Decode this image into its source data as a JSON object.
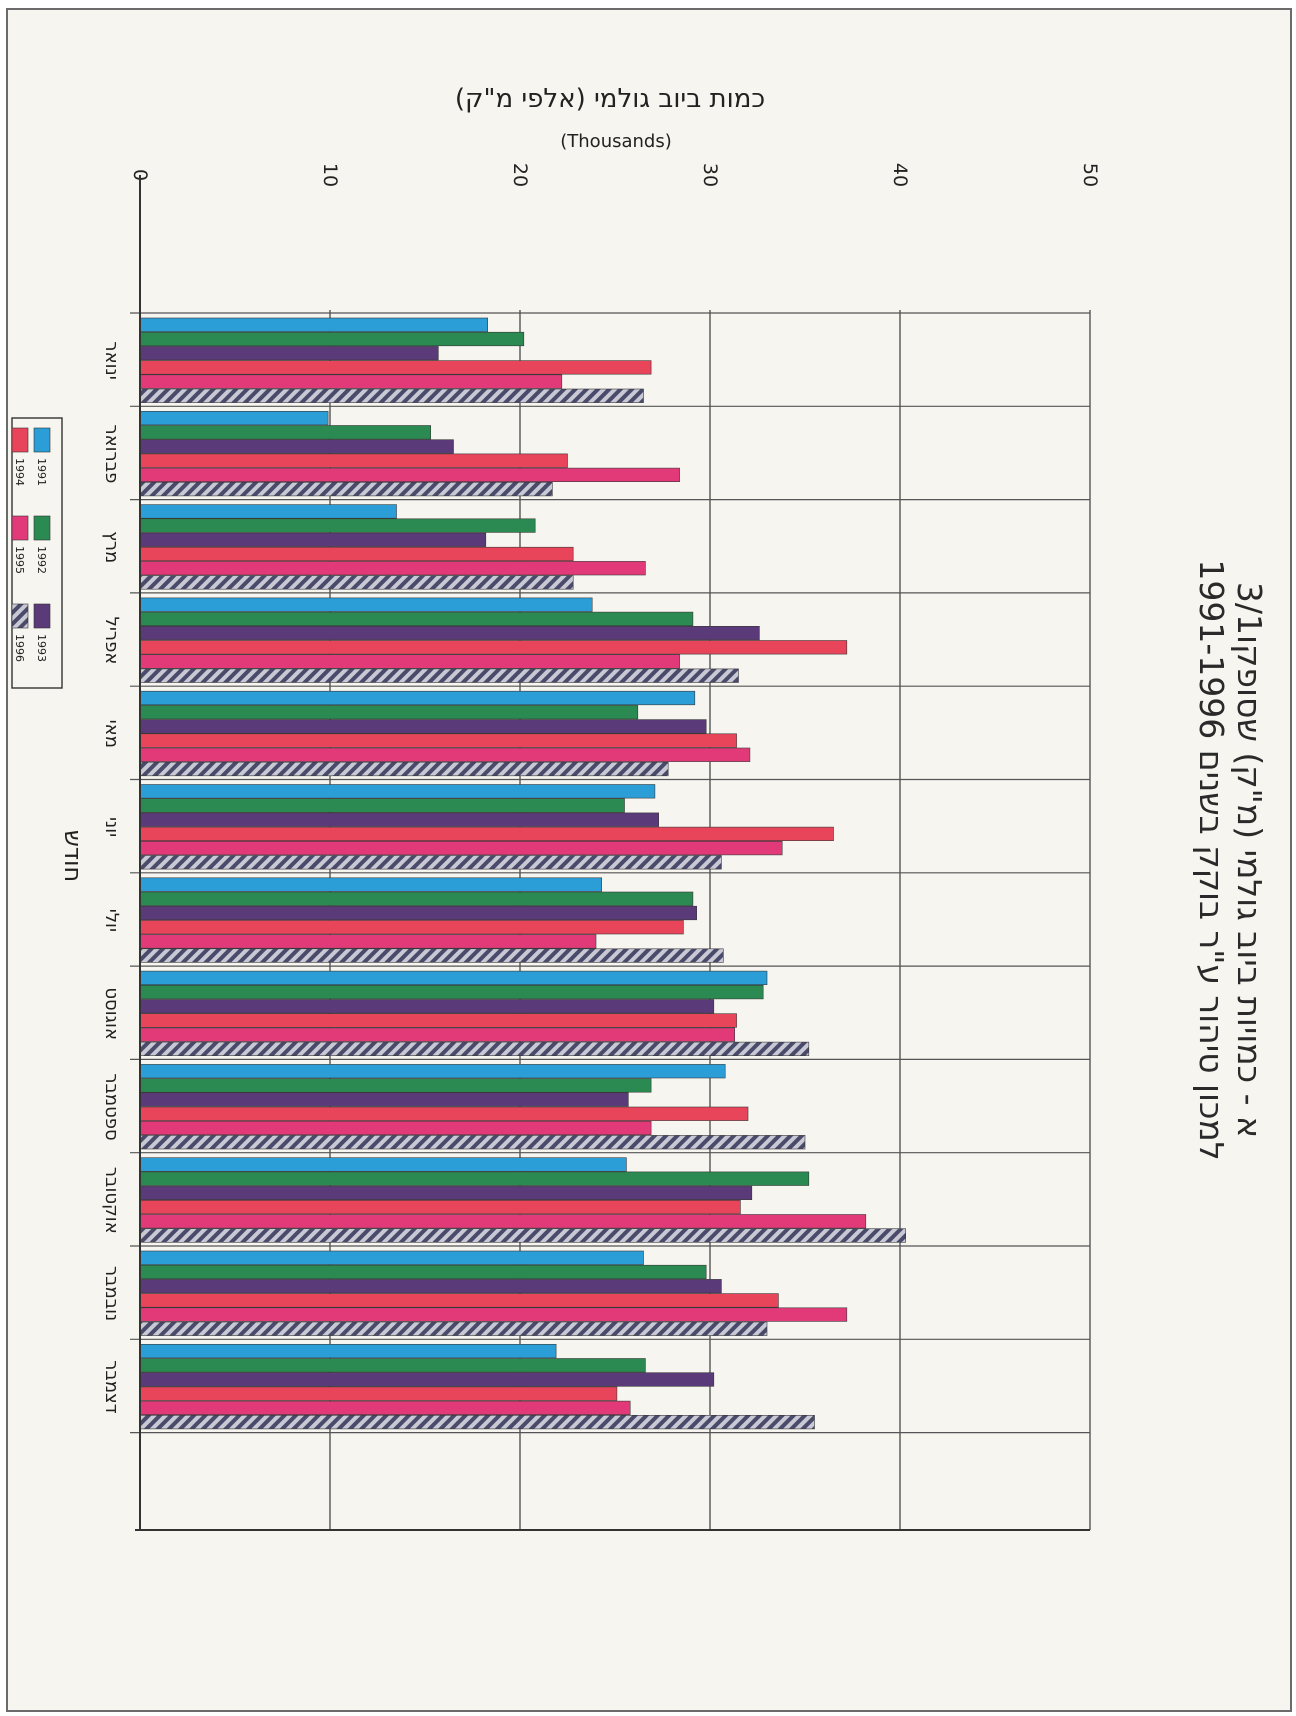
{
  "chart_data": {
    "type": "bar",
    "orientation": "horizontal",
    "title_line1": "3/1א - כמויות ביוב גולמי (מ\"ק) שסופקו",
    "title_line2": "למכון טיהור ע\"ר בוקק בשנים 1991-1996",
    "ylabel": "כמות ביוב גולמי (אלפי מ\"ק)",
    "yunit": "(Thousands)",
    "xlabel": "חודש",
    "ylim": [
      0,
      50
    ],
    "yticks": [
      "0",
      "10",
      "20",
      "30",
      "40",
      "50"
    ],
    "categories": [
      "ינואר",
      "פברואר",
      "מרץ",
      "אפריל",
      "מאי",
      "יוני",
      "יולי",
      "אוגוסט",
      "ספטמבר",
      "אוקטובר",
      "נובמבר",
      "דצמבר"
    ],
    "legend_position": "bottom-left",
    "grid": true,
    "series": [
      {
        "name": "1991",
        "color": "#2b9ed8",
        "pattern": "solid",
        "values": [
          18.3,
          9.9,
          13.5,
          23.8,
          29.2,
          27.1,
          24.3,
          33.0,
          30.8,
          25.6,
          26.5,
          21.9
        ]
      },
      {
        "name": "1992",
        "color": "#2a8a52",
        "pattern": "solid",
        "values": [
          20.2,
          15.3,
          20.8,
          29.1,
          26.2,
          25.5,
          29.1,
          32.8,
          26.9,
          35.2,
          29.8,
          26.6
        ]
      },
      {
        "name": "1993",
        "color": "#5a3a78",
        "pattern": "solid",
        "values": [
          15.7,
          16.5,
          18.2,
          32.6,
          29.8,
          27.3,
          29.3,
          30.2,
          25.7,
          32.2,
          30.6,
          30.2
        ]
      },
      {
        "name": "1994",
        "color": "#e8445a",
        "pattern": "solid",
        "values": [
          26.9,
          22.5,
          22.8,
          37.2,
          31.4,
          36.5,
          28.6,
          31.4,
          32.0,
          31.6,
          33.6,
          25.1
        ]
      },
      {
        "name": "1995",
        "color": "#e23a78",
        "pattern": "solid",
        "values": [
          22.2,
          28.4,
          26.6,
          28.4,
          32.1,
          33.8,
          24.0,
          31.3,
          26.9,
          38.2,
          37.2,
          25.8
        ]
      },
      {
        "name": "1996",
        "color": "#5a5a78",
        "pattern": "hatched",
        "values": [
          26.5,
          21.7,
          22.8,
          31.5,
          27.8,
          30.6,
          30.7,
          35.2,
          35.0,
          40.3,
          33.0,
          35.5
        ]
      }
    ]
  }
}
